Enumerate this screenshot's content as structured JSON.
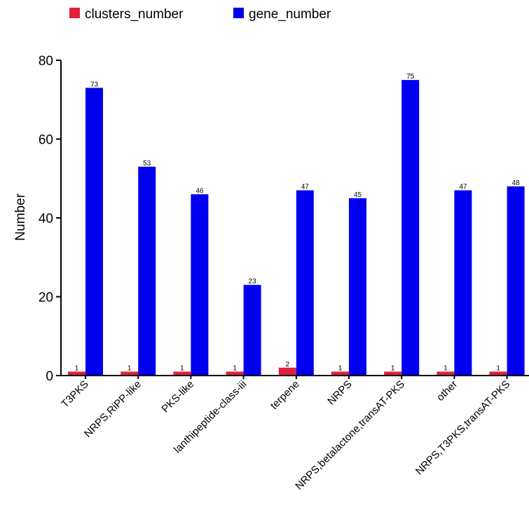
{
  "chart_data": {
    "type": "bar",
    "title": "",
    "xlabel": "",
    "ylabel": "Number",
    "ylim": [
      0,
      80
    ],
    "yticks": [
      0,
      20,
      40,
      60,
      80
    ],
    "grid": false,
    "legend_position": "top-left",
    "categories": [
      "T3PKS",
      "NRPS,RiPP-like",
      "PKS-like",
      "lanthipeptide-class-iii",
      "terpene",
      "NRPS",
      "NRPS,betalactone,transAT-PKS",
      "other",
      "NRPS,T3PKS,transAT-PKS"
    ],
    "series": [
      {
        "name": "clusters_number",
        "color": "#e0203c",
        "values": [
          1,
          1,
          1,
          1,
          2,
          1,
          1,
          1,
          1
        ]
      },
      {
        "name": "gene_number",
        "color": "#0000ee",
        "values": [
          73,
          53,
          46,
          23,
          47,
          45,
          75,
          47,
          48
        ]
      }
    ]
  }
}
